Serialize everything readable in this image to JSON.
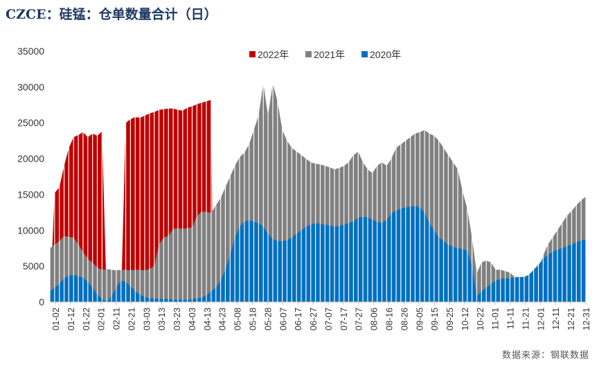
{
  "chart_data": {
    "type": "area",
    "title": "CZCE：硅锰：仓单数量合计（日）",
    "source": "数据来源：钢联数据",
    "ylim": [
      0,
      35000
    ],
    "yticks": [
      0,
      5000,
      10000,
      15000,
      20000,
      25000,
      30000,
      35000
    ],
    "xticks": [
      "01-02",
      "01-12",
      "01-22",
      "02-01",
      "02-11",
      "02-21",
      "03-03",
      "03-13",
      "03-23",
      "04-03",
      "04-13",
      "04-23",
      "05-08",
      "05-18",
      "05-28",
      "06-07",
      "06-17",
      "06-27",
      "07-07",
      "07-17",
      "07-27",
      "08-06",
      "08-16",
      "08-26",
      "09-05",
      "09-15",
      "09-25",
      "10-12",
      "10-22",
      "11-01",
      "11-11",
      "11-21",
      "12-01",
      "12-11",
      "12-21",
      "12-31"
    ],
    "legend_position": "top",
    "grid": false,
    "series": [
      {
        "name": "2022年",
        "color": "#c00000",
        "points": [
          [
            0,
            0
          ],
          [
            0.5,
            15200
          ],
          [
            1,
            16000
          ],
          [
            1.5,
            19000
          ],
          [
            2,
            21500
          ],
          [
            2.5,
            23000
          ],
          [
            3,
            23300
          ],
          [
            3.5,
            23700
          ],
          [
            4,
            23000
          ],
          [
            4.5,
            23500
          ],
          [
            5,
            23200
          ],
          [
            5.5,
            23800
          ],
          [
            6,
            0
          ],
          [
            7.5,
            0
          ],
          [
            8,
            25000
          ],
          [
            8.5,
            25500
          ],
          [
            9,
            25800
          ],
          [
            9.5,
            25700
          ],
          [
            10,
            26000
          ],
          [
            10.5,
            26300
          ],
          [
            11,
            26500
          ],
          [
            11.5,
            26800
          ],
          [
            12,
            26900
          ],
          [
            12.5,
            27000
          ],
          [
            13,
            27000
          ],
          [
            13.5,
            26800
          ],
          [
            14,
            26700
          ],
          [
            14.5,
            27100
          ],
          [
            15,
            27300
          ],
          [
            15.5,
            27600
          ],
          [
            16,
            27800
          ],
          [
            16.5,
            28000
          ],
          [
            17,
            28200
          ],
          [
            17.2,
            0
          ]
        ]
      },
      {
        "name": "2021年",
        "color": "#808080",
        "points": [
          [
            0,
            7500
          ],
          [
            0.5,
            8000
          ],
          [
            1,
            8500
          ],
          [
            1.5,
            9200
          ],
          [
            2,
            9100
          ],
          [
            2.5,
            9000
          ],
          [
            3,
            8000
          ],
          [
            3.5,
            7000
          ],
          [
            4,
            6000
          ],
          [
            4.5,
            5500
          ],
          [
            5,
            4800
          ],
          [
            5.5,
            4500
          ],
          [
            6,
            4600
          ],
          [
            6.5,
            4500
          ],
          [
            7,
            4400
          ],
          [
            7.5,
            4500
          ],
          [
            8,
            4500
          ],
          [
            8.5,
            4400
          ],
          [
            9,
            4500
          ],
          [
            9.5,
            4500
          ],
          [
            10,
            4400
          ],
          [
            10.5,
            4600
          ],
          [
            11,
            5000
          ],
          [
            11.5,
            8000
          ],
          [
            12,
            9000
          ],
          [
            12.5,
            9200
          ],
          [
            13,
            10200
          ],
          [
            13.5,
            10300
          ],
          [
            14,
            10200
          ],
          [
            14.5,
            10300
          ],
          [
            15,
            10400
          ],
          [
            15.5,
            12000
          ],
          [
            16,
            12600
          ],
          [
            16.5,
            12600
          ],
          [
            17,
            12400
          ],
          [
            17.5,
            13500
          ],
          [
            18,
            14500
          ],
          [
            18.5,
            16000
          ],
          [
            19,
            17500
          ],
          [
            19.5,
            19000
          ],
          [
            20,
            20200
          ],
          [
            20.5,
            20800
          ],
          [
            21,
            22000
          ],
          [
            21.5,
            24000
          ],
          [
            22,
            26000
          ],
          [
            22.5,
            30500
          ],
          [
            23,
            26000
          ],
          [
            23.5,
            30500
          ],
          [
            24,
            28000
          ],
          [
            24.5,
            24000
          ],
          [
            25,
            22500
          ],
          [
            25.5,
            21500
          ],
          [
            26,
            21000
          ],
          [
            26.5,
            20500
          ],
          [
            27,
            20000
          ],
          [
            27.5,
            19500
          ],
          [
            28,
            19300
          ],
          [
            28.5,
            19200
          ],
          [
            29,
            19000
          ],
          [
            29.5,
            18800
          ],
          [
            30,
            18500
          ],
          [
            30.5,
            18700
          ],
          [
            31,
            19000
          ],
          [
            31.5,
            19500
          ],
          [
            32,
            20500
          ],
          [
            32.5,
            21000
          ],
          [
            33,
            19500
          ],
          [
            33.5,
            18500
          ],
          [
            34,
            18000
          ],
          [
            34.5,
            19000
          ],
          [
            35,
            19500
          ],
          [
            35.5,
            19000
          ],
          [
            36,
            20000
          ],
          [
            36.5,
            21500
          ],
          [
            37,
            22000
          ],
          [
            37.5,
            22500
          ],
          [
            38,
            23000
          ],
          [
            38.5,
            23500
          ],
          [
            39,
            23700
          ],
          [
            39.5,
            24000
          ],
          [
            40,
            23500
          ],
          [
            40.5,
            23200
          ],
          [
            41,
            22500
          ],
          [
            41.5,
            21500
          ],
          [
            42,
            20500
          ],
          [
            42.5,
            19500
          ],
          [
            43,
            18500
          ],
          [
            43.5,
            15500
          ],
          [
            44,
            13000
          ],
          [
            44.5,
            9000
          ],
          [
            45,
            4000
          ],
          [
            45.5,
            5500
          ],
          [
            46,
            5800
          ],
          [
            46.5,
            5500
          ],
          [
            47,
            4500
          ],
          [
            47.5,
            4500
          ],
          [
            48,
            4300
          ],
          [
            48.5,
            4100
          ],
          [
            49,
            3500
          ],
          [
            49.5,
            3500
          ],
          [
            50,
            3400
          ],
          [
            50.5,
            3600
          ],
          [
            51,
            4000
          ],
          [
            51.5,
            4500
          ],
          [
            52,
            6500
          ],
          [
            52.5,
            8000
          ],
          [
            53,
            9000
          ],
          [
            53.5,
            10000
          ],
          [
            54,
            11000
          ],
          [
            54.5,
            12000
          ],
          [
            55,
            12700
          ],
          [
            55.5,
            13500
          ],
          [
            56,
            14200
          ],
          [
            56.5,
            14700
          ]
        ]
      },
      {
        "name": "2020年",
        "color": "#0070c0",
        "points": [
          [
            0,
            1500
          ],
          [
            0.5,
            2000
          ],
          [
            1,
            2500
          ],
          [
            1.5,
            3300
          ],
          [
            2,
            3700
          ],
          [
            2.5,
            3800
          ],
          [
            3,
            3600
          ],
          [
            3.5,
            3400
          ],
          [
            4,
            2800
          ],
          [
            4.5,
            2000
          ],
          [
            5,
            1000
          ],
          [
            5.5,
            500
          ],
          [
            6,
            0
          ],
          [
            6.5,
            800
          ],
          [
            7,
            2000
          ],
          [
            7.5,
            3000
          ],
          [
            8,
            2800
          ],
          [
            8.5,
            2200
          ],
          [
            9,
            1500
          ],
          [
            9.5,
            1000
          ],
          [
            10,
            700
          ],
          [
            10.5,
            500
          ],
          [
            11,
            500
          ],
          [
            11.5,
            400
          ],
          [
            12,
            400
          ],
          [
            12.5,
            400
          ],
          [
            13,
            300
          ],
          [
            13.5,
            300
          ],
          [
            14,
            300
          ],
          [
            14.5,
            300
          ],
          [
            15,
            400
          ],
          [
            15.5,
            500
          ],
          [
            16,
            600
          ],
          [
            16.5,
            900
          ],
          [
            17,
            1500
          ],
          [
            17.5,
            2000
          ],
          [
            18,
            3000
          ],
          [
            18.5,
            4500
          ],
          [
            19,
            6500
          ],
          [
            19.5,
            9000
          ],
          [
            20,
            10500
          ],
          [
            20.5,
            11200
          ],
          [
            21,
            11400
          ],
          [
            21.5,
            11200
          ],
          [
            22,
            11000
          ],
          [
            22.5,
            10500
          ],
          [
            23,
            9500
          ],
          [
            23.5,
            8800
          ],
          [
            24,
            8500
          ],
          [
            24.5,
            8500
          ],
          [
            25,
            8600
          ],
          [
            25.5,
            9000
          ],
          [
            26,
            9500
          ],
          [
            26.5,
            10000
          ],
          [
            27,
            10500
          ],
          [
            27.5,
            10800
          ],
          [
            28,
            11000
          ],
          [
            28.5,
            10900
          ],
          [
            29,
            10800
          ],
          [
            29.5,
            10700
          ],
          [
            30,
            10500
          ],
          [
            30.5,
            10600
          ],
          [
            31,
            10800
          ],
          [
            31.5,
            11000
          ],
          [
            32,
            11200
          ],
          [
            32.5,
            11800
          ],
          [
            33,
            11900
          ],
          [
            33.5,
            11800
          ],
          [
            34,
            11500
          ],
          [
            34.5,
            11200
          ],
          [
            35,
            11000
          ],
          [
            35.5,
            11500
          ],
          [
            36,
            12300
          ],
          [
            36.5,
            12800
          ],
          [
            37,
            13000
          ],
          [
            37.5,
            13200
          ],
          [
            38,
            13300
          ],
          [
            38.5,
            13400
          ],
          [
            39,
            13200
          ],
          [
            39.5,
            12500
          ],
          [
            40,
            11000
          ],
          [
            40.5,
            10000
          ],
          [
            41,
            9000
          ],
          [
            41.5,
            8500
          ],
          [
            42,
            8000
          ],
          [
            42.5,
            7700
          ],
          [
            43,
            7500
          ],
          [
            43.5,
            7400
          ],
          [
            44,
            7200
          ],
          [
            44.5,
            5000
          ],
          [
            45,
            800
          ],
          [
            45.5,
            1500
          ],
          [
            46,
            2000
          ],
          [
            46.5,
            2500
          ],
          [
            47,
            3000
          ],
          [
            47.5,
            3200
          ],
          [
            48,
            3300
          ],
          [
            48.5,
            3300
          ],
          [
            49,
            3400
          ],
          [
            49.5,
            3500
          ],
          [
            50,
            3500
          ],
          [
            50.5,
            3800
          ],
          [
            51,
            4500
          ],
          [
            51.5,
            5200
          ],
          [
            52,
            6000
          ],
          [
            52.5,
            6600
          ],
          [
            53,
            7000
          ],
          [
            53.5,
            7300
          ],
          [
            54,
            7500
          ],
          [
            54.5,
            7800
          ],
          [
            55,
            8000
          ],
          [
            55.5,
            8300
          ],
          [
            56,
            8600
          ],
          [
            56.5,
            8700
          ]
        ]
      }
    ]
  }
}
